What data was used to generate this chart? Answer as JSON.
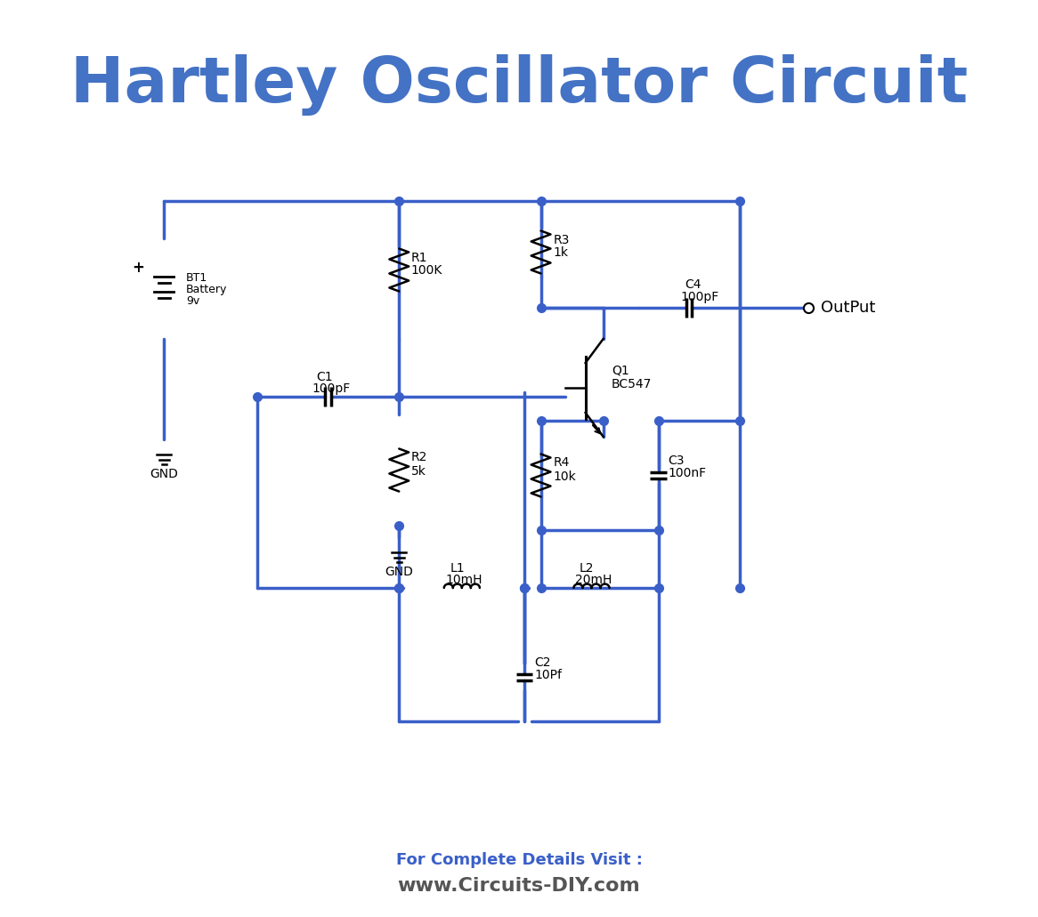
{
  "title": "Hartley Oscillator Circuit",
  "title_color": "#4472C4",
  "title_fontsize": 52,
  "bg_color": "#ffffff",
  "circuit_color": "#3a5fc8",
  "component_color": "#000000",
  "footer_line1": "For Complete Details Visit :",
  "footer_line2": "www.Circuits-DIY.com",
  "footer_color1": "#3a5fc8",
  "footer_color2": "#555555",
  "lw": 2.5
}
